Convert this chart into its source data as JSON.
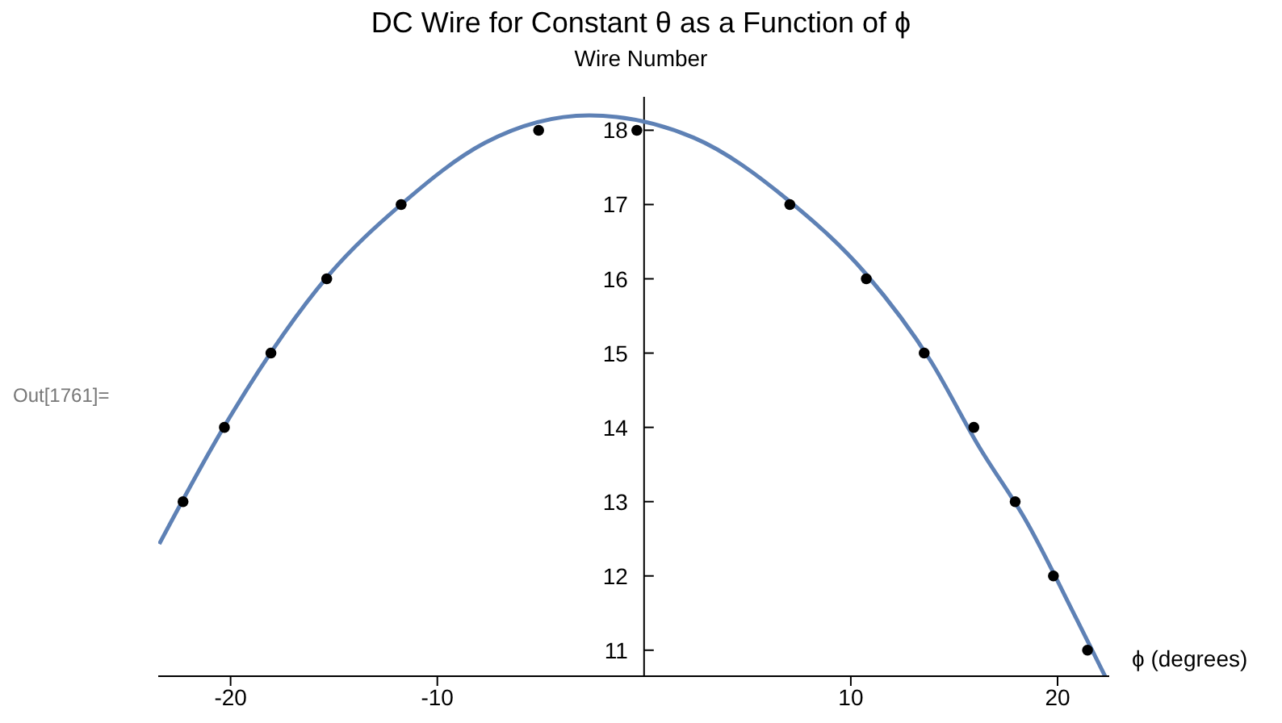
{
  "chart_data": {
    "type": "scatter",
    "title": "DC Wire for Constant θ as a Function of ϕ",
    "ylabel": "Wire Number",
    "xlabel": "ϕ (degrees)",
    "annotations": [
      "Out[1761]="
    ],
    "xlim": [
      -23.5,
      22.5
    ],
    "xticks": [
      -20,
      -10,
      10,
      20
    ],
    "ylim": [
      10.65,
      18.45
    ],
    "yticks": [
      11,
      12,
      13,
      14,
      15,
      16,
      17,
      18
    ],
    "grid": false,
    "series": [
      {
        "marker": "circle",
        "color": "#000000",
        "x": [
          -22.3,
          -20.3,
          -18.05,
          -15.35,
          -11.75,
          -5.1,
          -0.35,
          7.05,
          10.75,
          13.55,
          15.95,
          17.95,
          19.8,
          21.45
        ],
        "values": [
          13,
          14,
          15,
          16,
          17,
          18,
          18,
          17,
          16,
          15,
          14,
          13,
          12,
          11
        ]
      },
      {
        "type": "line",
        "marker": "none",
        "line_style": "solid",
        "color": "#5e81b5",
        "x": [
          -23.45,
          -20.25,
          -15.25,
          -11.75,
          -7.7,
          -2.65,
          2.4,
          7.05,
          10.75,
          13.85,
          16.2,
          18.5,
          20.9,
          22.3
        ],
        "values": [
          12.43,
          14.04,
          16.05,
          17.0,
          17.83,
          18.2,
          17.9,
          17.04,
          16.06,
          14.9,
          13.74,
          12.73,
          11.43,
          10.65
        ]
      }
    ]
  }
}
